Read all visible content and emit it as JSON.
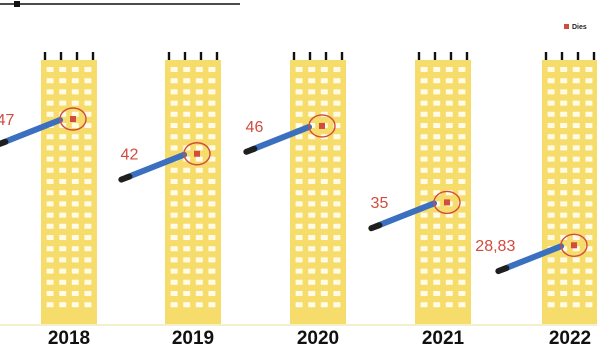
{
  "chart_data": {
    "type": "bar",
    "categories": [
      "2018",
      "2019",
      "2020",
      "2021",
      "2022"
    ],
    "series": [
      {
        "name": "Dies",
        "values": [
          47,
          42,
          46,
          35,
          28.83
        ]
      }
    ],
    "value_labels": [
      "47",
      "42",
      "46",
      "35",
      "28,83"
    ],
    "legend_position": "top-right",
    "grid": false,
    "colors": {
      "building": "#f6dc6b",
      "window": "#fffbe6",
      "marker": "#d24b3e",
      "pointer": "#3b6fbf",
      "pointer_tip": "#1f1f1f",
      "label": "#d24b3e",
      "ground": "#f3eecb"
    }
  }
}
